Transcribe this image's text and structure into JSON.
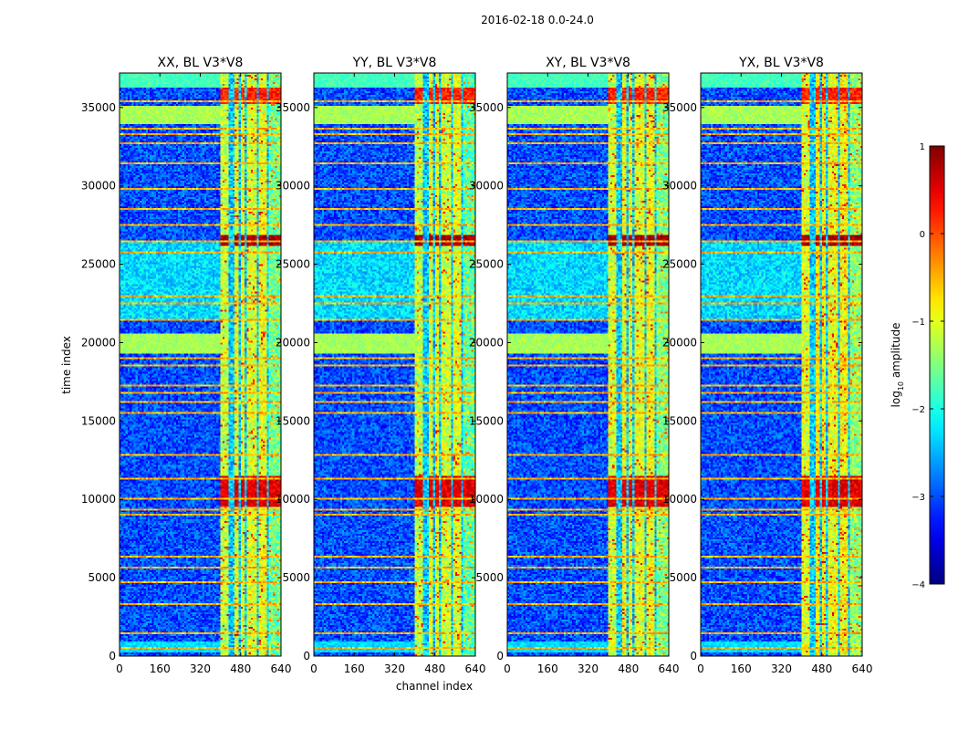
{
  "chart_data": {
    "type": "heatmap",
    "suptitle": "2016-02-18 0.0-24.0",
    "xlabel": "channel index",
    "ylabel": "time index",
    "xlim": [
      0,
      640
    ],
    "ylim": [
      0,
      37200
    ],
    "x_ticks": [
      "0",
      "160",
      "320",
      "480",
      "640"
    ],
    "y_ticks": [
      "0",
      "5000",
      "10000",
      "15000",
      "20000",
      "25000",
      "30000",
      "35000"
    ],
    "colorbar": {
      "label": "log$_{10}$ amplitude",
      "label_main": "log",
      "label_sub": "10",
      "label_rest": " amplitude",
      "range": [
        -4,
        1
      ],
      "ticks": [
        "1",
        "0",
        "−1",
        "−2",
        "−3",
        "−4"
      ],
      "colormap": "jet"
    },
    "panels": [
      {
        "title": "XX, BL V3*V8",
        "band_strength": 1.0
      },
      {
        "title": "YY, BL V3*V8",
        "band_strength": 1.05
      },
      {
        "title": "XY, BL V3*V8",
        "band_strength": 0.95
      },
      {
        "title": "YX, BL V3*V8",
        "band_strength": 0.9
      }
    ],
    "features": {
      "background_level": -3.0,
      "strong_channel_range": [
        400,
        640
      ],
      "channel_stripes": [
        {
          "x0": 400,
          "x1": 435,
          "level": -1.2
        },
        {
          "x0": 455,
          "x1": 468,
          "level": -1.0
        },
        {
          "x0": 478,
          "x1": 495,
          "level": -1.0
        },
        {
          "x0": 505,
          "x1": 545,
          "level": -1.1
        },
        {
          "x0": 555,
          "x1": 585,
          "level": -1.0
        },
        {
          "x0": 595,
          "x1": 640,
          "level": -1.6
        }
      ],
      "bright_time_bands": [
        {
          "t0": 9500,
          "t1": 11500,
          "level": 0.5
        },
        {
          "t0": 26200,
          "t1": 26800,
          "level": 0.8
        },
        {
          "t0": 35200,
          "t1": 36300,
          "level": 0.2
        }
      ],
      "flagged_rows": [
        {
          "t0": 34000,
          "t1": 35100,
          "level": -1.3
        },
        {
          "t0": 19300,
          "t1": 20600,
          "level": -1.3
        },
        {
          "t0": 200,
          "t1": 900,
          "level": -2.3
        },
        {
          "t0": 36300,
          "t1": 37200,
          "level": -1.8
        }
      ],
      "horizontal_lines": [
        500,
        1500,
        3300,
        4700,
        5600,
        6300,
        9000,
        9400,
        10000,
        11300,
        12800,
        15500,
        16200,
        16800,
        17300,
        18500,
        19000,
        21500,
        22500,
        23000,
        25800,
        26500,
        27500,
        28500,
        29800,
        31500,
        32700,
        33300,
        33700,
        35400
      ],
      "elevated_region": {
        "t0": 21500,
        "t1": 26500,
        "x0": 0,
        "x1": 400,
        "level": -2.3
      }
    }
  }
}
